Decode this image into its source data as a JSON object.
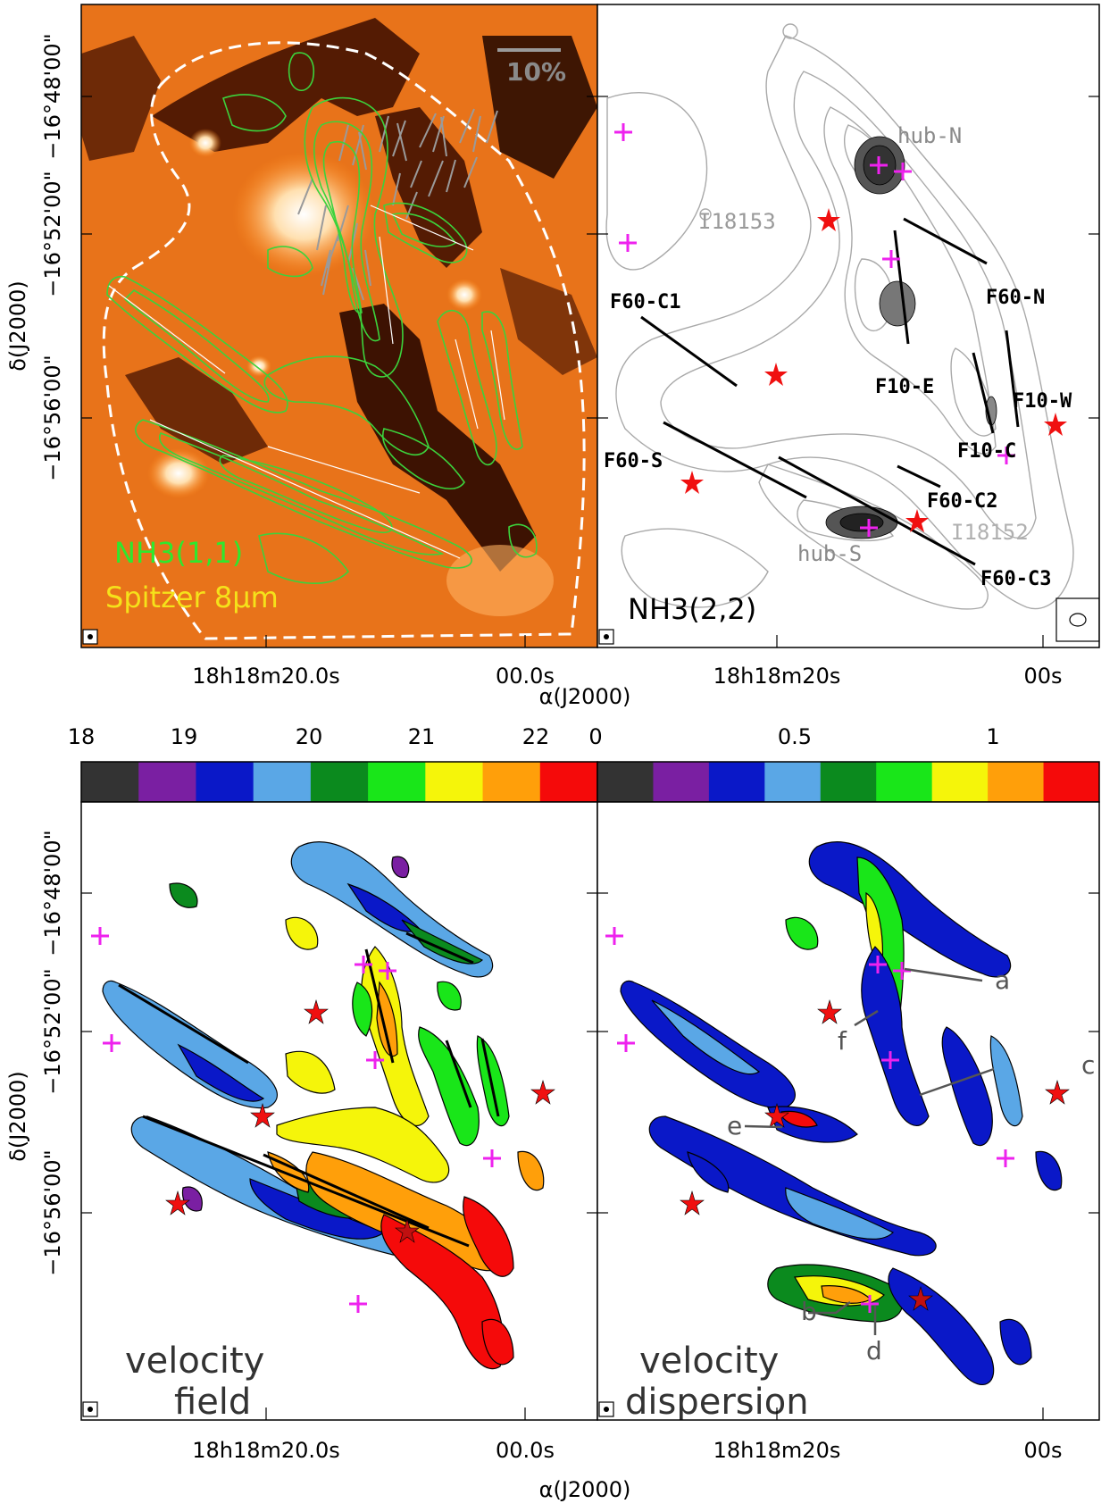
{
  "panels": {
    "tl": {
      "legend_line1": "NH3(1,1)",
      "legend_line2": "Spitzer 8µm",
      "scale_bar": "10%",
      "x_ticks": [
        "18h18m20.0s",
        "00.0s"
      ]
    },
    "tr": {
      "legend": "NH3(2,2)",
      "source_labels": [
        "hub-N",
        "I18153",
        "hub-S",
        "I18152"
      ],
      "filament_labels": [
        "F60-C1",
        "F60-N",
        "F10-E",
        "F10-W",
        "F10-C",
        "F60-S",
        "F60-C2",
        "F60-C3"
      ],
      "x_ticks": [
        "18h18m20s",
        "00s"
      ]
    },
    "bl": {
      "title_line1": "velocity",
      "title_line2": "field",
      "colorbar": {
        "ticks": [
          "18",
          "19",
          "20",
          "21",
          "22"
        ]
      },
      "x_ticks": [
        "18h18m20.0s",
        "00.0s"
      ]
    },
    "br": {
      "title_line1": "velocity",
      "title_line2": "dispersion",
      "colorbar": {
        "ticks": [
          "0",
          "0.5",
          "1"
        ]
      },
      "markers": [
        "a",
        "b",
        "c",
        "d",
        "e",
        "f"
      ],
      "x_ticks": [
        "18h18m20s",
        "00s"
      ]
    }
  },
  "axes": {
    "ylabel": "δ(J2000)",
    "xlabel": "α(J2000)",
    "y_ticks": [
      "−16°48'00\"",
      "−16°52'00\"",
      "−16°56'00\""
    ]
  },
  "colors": {
    "colorbar": [
      "#333333",
      "#7a1fa2",
      "#0a18c8",
      "#5aa7e6",
      "#0b8a1e",
      "#19e619",
      "#f5f50a",
      "#ff9f0a",
      "#f50a0a"
    ],
    "contour_green": "#3cd23c",
    "star_red": "#f01010",
    "cross_magenta": "#ee22ee"
  },
  "chart_data": [
    {
      "type": "heatmap",
      "panel": "tl",
      "description_layers": [
        "NH3(1,1) contours",
        "Spitzer 8µm image",
        "polarization segments"
      ]
    },
    {
      "type": "heatmap",
      "panel": "tr",
      "description_layers": [
        "NH3(2,2) contours"
      ]
    },
    {
      "type": "heatmap",
      "panel": "bl",
      "colorbar_range": [
        18,
        22.5
      ]
    },
    {
      "type": "heatmap",
      "panel": "br",
      "colorbar_range": [
        0,
        1.2
      ]
    }
  ]
}
